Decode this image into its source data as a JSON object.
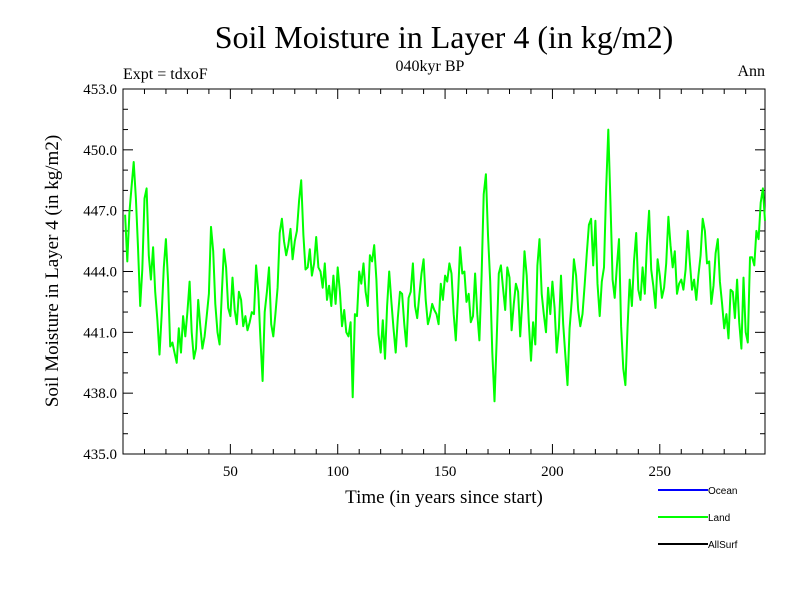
{
  "chart_data": {
    "type": "line",
    "title": "Soil Moisture in Layer 4 (in kg/m2)",
    "subtitle": "040kyr BP",
    "left_note": "Expt = tdxoF",
    "right_note": "Ann",
    "xlabel": "Time (in years since start)",
    "ylabel": "Soil Moisture in Layer 4 (in kg/m2)",
    "xlim": [
      0,
      299
    ],
    "ylim": [
      435.0,
      453.0
    ],
    "xticks": [
      50,
      100,
      150,
      200,
      250
    ],
    "yticks": [
      "435.0",
      "438.0",
      "441.0",
      "444.0",
      "447.0",
      "450.0",
      "453.0"
    ],
    "grid": false,
    "legend_position": "bottom-right",
    "legend": [
      {
        "name": "Ocean",
        "color": "#0000ff"
      },
      {
        "name": "Land",
        "color": "#00ff00"
      },
      {
        "name": "AllSurf",
        "color": "#000000"
      }
    ],
    "series": [
      {
        "name": "Land",
        "color": "#00ff00",
        "x_start": 1,
        "x_step": 1,
        "values": [
          446.8,
          444.5,
          446.9,
          448.2,
          449.4,
          447.6,
          445.2,
          442.3,
          444.1,
          447.6,
          448.1,
          444.8,
          443.6,
          445.2,
          443.0,
          441.6,
          439.9,
          441.8,
          444.2,
          445.6,
          443.5,
          440.3,
          440.5,
          440.0,
          439.5,
          441.2,
          440.0,
          441.8,
          440.8,
          442.0,
          443.5,
          441.0,
          439.7,
          440.2,
          442.6,
          441.3,
          440.2,
          440.8,
          441.8,
          442.9,
          446.2,
          445.0,
          442.4,
          441.0,
          440.4,
          442.9,
          445.1,
          444.2,
          442.2,
          441.8,
          443.7,
          442.1,
          441.4,
          443.0,
          442.6,
          441.3,
          441.8,
          441.1,
          441.5,
          442.0,
          441.9,
          444.3,
          443.0,
          440.7,
          438.6,
          442.0,
          443.0,
          444.2,
          441.4,
          440.8,
          441.9,
          443.2,
          445.9,
          446.6,
          445.5,
          444.8,
          445.3,
          446.1,
          444.6,
          445.5,
          446.0,
          447.5,
          448.5,
          445.8,
          444.1,
          444.2,
          445.1,
          443.8,
          444.4,
          445.7,
          444.2,
          444.0,
          443.2,
          444.4,
          442.6,
          443.3,
          442.3,
          443.8,
          442.4,
          444.2,
          443.0,
          441.3,
          442.1,
          441.0,
          440.8,
          441.5,
          437.8,
          441.9,
          441.8,
          444.0,
          443.4,
          444.4,
          443.0,
          442.3,
          444.8,
          444.5,
          445.3,
          443.6,
          440.9,
          440.0,
          441.6,
          439.7,
          442.3,
          444.0,
          442.5,
          441.2,
          440.0,
          441.7,
          443.0,
          442.9,
          441.4,
          440.3,
          442.7,
          443.0,
          444.4,
          442.3,
          441.7,
          442.8,
          443.9,
          444.6,
          442.6,
          441.4,
          441.8,
          442.4,
          442.1,
          441.9,
          441.4,
          443.4,
          442.6,
          443.8,
          443.5,
          444.4,
          443.9,
          441.9,
          440.6,
          442.8,
          445.2,
          443.9,
          444.0,
          442.5,
          442.9,
          441.5,
          441.8,
          443.9,
          441.9,
          440.6,
          443.8,
          447.8,
          448.8,
          445.8,
          443.5,
          440.0,
          437.6,
          440.5,
          443.9,
          444.3,
          443.2,
          442.1,
          444.2,
          443.7,
          441.1,
          442.4,
          443.4,
          443.0,
          440.8,
          442.6,
          445.0,
          443.8,
          441.5,
          439.6,
          441.5,
          440.4,
          444.3,
          445.6,
          442.9,
          441.9,
          441.0,
          443.2,
          441.9,
          443.5,
          442.2,
          440.0,
          441.2,
          443.8,
          441.4,
          439.9,
          438.4,
          441.2,
          442.6,
          444.6,
          443.8,
          442.1,
          441.3,
          441.9,
          443.3,
          444.9,
          446.3,
          446.6,
          444.3,
          446.5,
          443.4,
          441.8,
          443.5,
          444.2,
          448.0,
          451.0,
          447.5,
          443.6,
          442.7,
          444.2,
          445.6,
          441.3,
          439.2,
          438.4,
          441.3,
          443.6,
          442.3,
          444.5,
          445.9,
          443.1,
          442.6,
          444.2,
          442.9,
          445.3,
          447.0,
          444.1,
          443.3,
          442.2,
          444.6,
          443.8,
          442.7,
          443.2,
          444.4,
          446.7,
          445.3,
          444.2,
          445.0,
          442.9,
          443.4,
          443.6,
          443.1,
          444.1,
          446.0,
          444.5,
          443.1,
          443.6,
          442.6,
          443.8,
          444.8,
          446.6,
          446.0,
          444.4,
          444.5,
          442.4,
          443.3,
          444.9,
          445.6,
          443.5,
          442.4,
          441.2,
          441.9,
          440.7,
          443.1,
          443.0,
          441.7,
          443.6,
          441.5,
          440.2,
          443.7,
          441.0,
          440.5,
          444.7,
          444.7,
          444.3,
          446.0,
          445.6,
          447.4,
          448.1,
          446.5
        ]
      }
    ]
  }
}
